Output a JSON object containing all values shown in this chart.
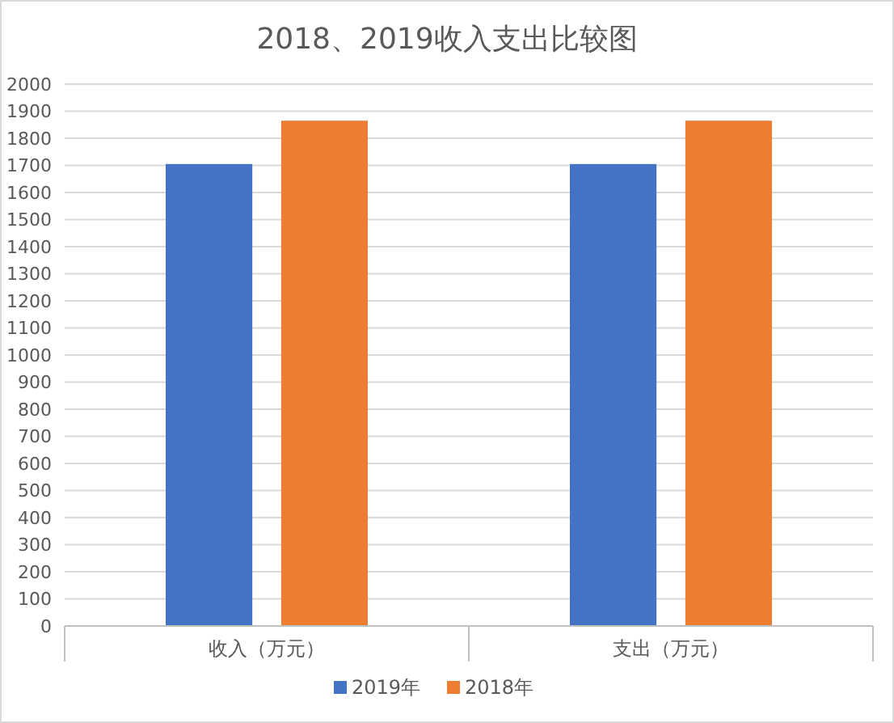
{
  "chart_data": {
    "type": "bar",
    "title": "2018、2019收入支出比较图",
    "categories": [
      "收入（万元）",
      "支出（万元）"
    ],
    "series": [
      {
        "name": "2019年",
        "color": "#4472c4",
        "values": [
          1705,
          1705
        ]
      },
      {
        "name": "2018年",
        "color": "#ed7d31",
        "values": [
          1865,
          1865
        ]
      }
    ],
    "ylim": [
      0,
      2000
    ],
    "yticks": [
      0,
      100,
      200,
      300,
      400,
      500,
      600,
      700,
      800,
      900,
      1000,
      1100,
      1200,
      1300,
      1400,
      1500,
      1600,
      1700,
      1800,
      1900,
      2000
    ],
    "grid": "y",
    "legend": "bottom"
  }
}
